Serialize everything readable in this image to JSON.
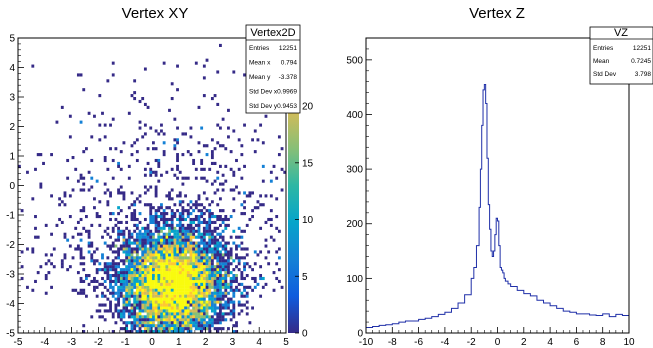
{
  "chart_data": [
    {
      "type": "heatmap",
      "title": "Vertex XY",
      "xlim": [
        -5,
        5
      ],
      "ylim": [
        -5,
        5
      ],
      "x_ticks": [
        -5,
        -4,
        -3,
        -2,
        -1,
        0,
        1,
        2,
        3,
        4,
        5
      ],
      "y_ticks": [
        -5,
        -4,
        -3,
        -2,
        -1,
        0,
        1,
        2,
        3,
        4,
        5
      ],
      "colorbar": {
        "range": [
          0,
          26
        ],
        "ticks": [
          0,
          5,
          10,
          15,
          20
        ],
        "palette": [
          "#352a87",
          "#0f5cdd",
          "#1481d6",
          "#06a4ca",
          "#2eb7a4",
          "#87bf77",
          "#d1bb59",
          "#fec832",
          "#f9fb0e"
        ]
      },
      "distribution": {
        "center": [
          0.794,
          -3.378
        ],
        "std": [
          0.9969,
          0.9453
        ],
        "background_fraction": 0.15
      },
      "stats": {
        "title": "Vertex2D",
        "rows": [
          {
            "label": "Entries",
            "value": "12251"
          },
          {
            "label": "Mean x",
            "value": "0.794"
          },
          {
            "label": "Mean y",
            "value": "-3.378"
          },
          {
            "label": "Std Dev x",
            "value": "0.9969"
          },
          {
            "label": "Std Dev y",
            "value": "0.9453"
          }
        ]
      }
    },
    {
      "type": "line",
      "title": "Vertex Z",
      "xlim": [
        -10,
        10
      ],
      "ylim": [
        0,
        540
      ],
      "x_ticks": [
        -10,
        -8,
        -6,
        -4,
        -2,
        0,
        2,
        4,
        6,
        8,
        10
      ],
      "y_ticks": [
        0,
        100,
        200,
        300,
        400,
        500
      ],
      "line_color": "#1f2fa8",
      "series": [
        {
          "x": [
            -10,
            -9.5,
            -9,
            -8.5,
            -8,
            -7.5,
            -7,
            -6.5,
            -6,
            -5.5,
            -5,
            -4.5,
            -4,
            -3.5,
            -3,
            -2.5,
            -2,
            -1.8,
            -1.6,
            -1.4,
            -1.3,
            -1.2,
            -1.1,
            -1.0,
            -0.9,
            -0.8,
            -0.7,
            -0.6,
            -0.5,
            -0.4,
            -0.3,
            -0.2,
            -0.1,
            0,
            0.1,
            0.2,
            0.3,
            0.4,
            0.5,
            0.6,
            0.8,
            1.0,
            1.5,
            2,
            2.5,
            3,
            3.5,
            4,
            4.5,
            5,
            5.5,
            6,
            6.5,
            7,
            7.5,
            8,
            8.5,
            9,
            9.5,
            10
          ],
          "values": [
            10,
            12,
            14,
            15,
            17,
            20,
            22,
            22,
            25,
            27,
            30,
            34,
            38,
            45,
            55,
            70,
            100,
            120,
            160,
            230,
            300,
            380,
            445,
            455,
            420,
            320,
            235,
            190,
            150,
            140,
            150,
            180,
            210,
            205,
            160,
            120,
            115,
            110,
            100,
            95,
            90,
            85,
            78,
            72,
            68,
            60,
            55,
            50,
            45,
            40,
            38,
            35,
            35,
            33,
            32,
            35,
            30,
            34,
            32,
            35
          ]
        }
      ],
      "stats": {
        "title": "VZ",
        "rows": [
          {
            "label": "Entries",
            "value": "12251"
          },
          {
            "label": "Mean",
            "value": "0.7245"
          },
          {
            "label": "Std Dev",
            "value": "3.798"
          }
        ]
      }
    }
  ]
}
